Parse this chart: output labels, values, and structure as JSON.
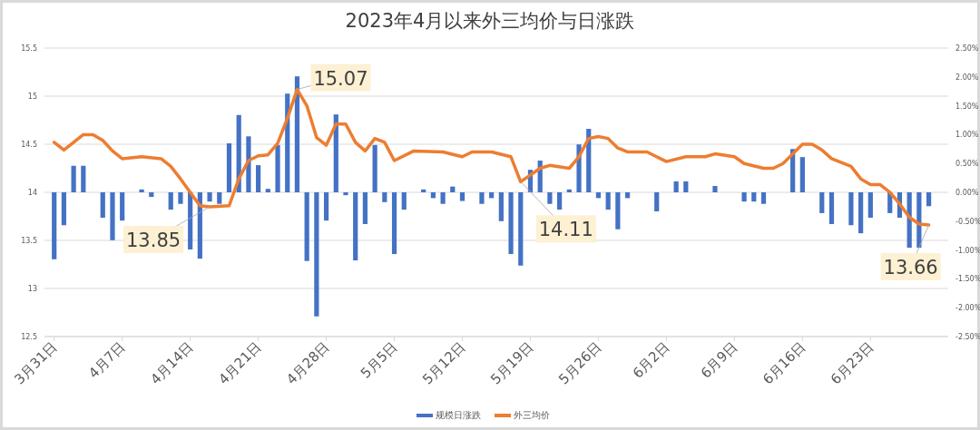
{
  "chart_data": {
    "type": "bar",
    "title": "2023年4月以来外三均价与日涨跌",
    "xlim": [
      "--03-30",
      "--07-01"
    ],
    "xticks": [
      {
        "value": "--03-31",
        "label": "3月31日"
      },
      {
        "value": "--04-07",
        "label": "4月7日"
      },
      {
        "value": "--04-14",
        "label": "4月14日"
      },
      {
        "value": "--04-21",
        "label": "4月21日"
      },
      {
        "value": "--04-28",
        "label": "4月28日"
      },
      {
        "value": "--05-05",
        "label": "5月5日"
      },
      {
        "value": "--05-12",
        "label": "5月12日"
      },
      {
        "value": "--05-19",
        "label": "5月19日"
      },
      {
        "value": "--05-26",
        "label": "5月26日"
      },
      {
        "value": "--06-02",
        "label": "6月2日"
      },
      {
        "value": "--06-09",
        "label": "6月9日"
      },
      {
        "value": "--06-16",
        "label": "6月16日"
      },
      {
        "value": "--06-23",
        "label": "6月23日"
      }
    ],
    "ylim": [
      12.5,
      15.5
    ],
    "yticks": [
      12.5,
      13,
      13.5,
      14,
      14.5,
      15,
      15.5
    ],
    "y2lim": [
      -2.5,
      2.5
    ],
    "y2ticks": [
      {
        "value": -2.5,
        "label": "-2.50%"
      },
      {
        "value": -2,
        "label": "-2.00%"
      },
      {
        "value": -1.5,
        "label": "-1.50%"
      },
      {
        "value": -1,
        "label": "-1.00%"
      },
      {
        "value": -0.5,
        "label": "-0.50%"
      },
      {
        "value": 0,
        "label": "0.00%"
      },
      {
        "value": 0.5,
        "label": "0.50%"
      },
      {
        "value": 1,
        "label": "1.00%"
      },
      {
        "value": 1.5,
        "label": "1.50%"
      },
      {
        "value": 2,
        "label": "2.00%"
      },
      {
        "value": 2.5,
        "label": "2.50%"
      }
    ],
    "grid": "y",
    "legend": "bottom",
    "series": [
      {
        "name": "规模日涨跌",
        "type": "bar",
        "axis": "y2",
        "color": "#4472c4",
        "x": [
          "--03-31",
          "--04-01",
          "--04-02",
          "--04-03",
          "--04-05",
          "--04-06",
          "--04-07",
          "--04-09",
          "--04-10",
          "--04-12",
          "--04-13",
          "--04-14",
          "--04-15",
          "--04-16",
          "--04-17",
          "--04-18",
          "--04-19",
          "--04-20",
          "--04-21",
          "--04-22",
          "--04-23",
          "--04-24",
          "--04-25",
          "--04-26",
          "--04-27",
          "--04-28",
          "--04-29",
          "--04-30",
          "--05-01",
          "--05-02",
          "--05-03",
          "--05-04",
          "--05-05",
          "--05-06",
          "--05-08",
          "--05-09",
          "--05-10",
          "--05-11",
          "--05-12",
          "--05-14",
          "--05-15",
          "--05-16",
          "--05-17",
          "--05-18",
          "--05-19",
          "--05-20",
          "--05-21",
          "--05-22",
          "--05-23",
          "--05-24",
          "--05-25",
          "--05-26",
          "--05-27",
          "--05-28",
          "--05-29",
          "--06-01",
          "--06-03",
          "--06-04",
          "--06-07",
          "--06-10",
          "--06-11",
          "--06-12",
          "--06-15",
          "--06-16",
          "--06-18",
          "--06-19",
          "--06-21",
          "--06-22",
          "--06-23",
          "--06-25",
          "--06-26",
          "--06-27",
          "--06-28",
          "--06-29"
        ],
        "values": [
          -1.16,
          -0.57,
          0.46,
          0.46,
          -0.44,
          -0.83,
          -0.49,
          0.05,
          -0.08,
          -0.3,
          -0.2,
          -0.99,
          -1.15,
          -0.16,
          -0.2,
          0.85,
          1.34,
          0.97,
          0.47,
          0.06,
          0.82,
          1.71,
          2.01,
          -1.19,
          -2.15,
          -0.49,
          1.35,
          -0.05,
          -1.18,
          -0.55,
          0.82,
          -0.17,
          -1.07,
          -0.3,
          0.05,
          -0.1,
          -0.2,
          0.1,
          -0.15,
          -0.2,
          -0.1,
          -0.5,
          -1.07,
          -1.27,
          0.39,
          0.55,
          -0.2,
          -0.3,
          0.05,
          0.83,
          1.1,
          -0.1,
          -0.3,
          -0.64,
          -0.1,
          -0.33,
          0.19,
          0.19,
          0.11,
          -0.16,
          -0.16,
          -0.2,
          0.75,
          0.61,
          -0.36,
          -0.55,
          -0.57,
          -0.71,
          -0.44,
          -0.36,
          -0.44,
          -0.96,
          -0.96,
          -0.24
        ]
      },
      {
        "name": "外三均价",
        "type": "line",
        "color": "#ed7d31",
        "x": [
          "--03-31",
          "--04-01",
          "--04-03",
          "--04-04",
          "--04-05",
          "--04-06",
          "--04-07",
          "--04-09",
          "--04-11",
          "--04-12",
          "--04-13",
          "--04-15",
          "--04-16",
          "--04-18",
          "--04-19",
          "--04-20",
          "--04-21",
          "--04-22",
          "--04-23",
          "--04-24",
          "--04-25",
          "--04-26",
          "--04-27",
          "--04-28",
          "--04-29",
          "--04-30",
          "--05-01",
          "--05-02",
          "--05-03",
          "--05-04",
          "--05-05",
          "--05-07",
          "--05-10",
          "--05-12",
          "--05-13",
          "--05-15",
          "--05-17",
          "--05-18",
          "--05-20",
          "--05-21",
          "--05-23",
          "--05-24",
          "--05-25",
          "--05-26",
          "--05-27",
          "--05-28",
          "--05-29",
          "--05-31",
          "--06-02",
          "--06-04",
          "--06-06",
          "--06-07",
          "--06-09",
          "--06-10",
          "--06-12",
          "--06-13",
          "--06-14",
          "--06-16",
          "--06-17",
          "--06-18",
          "--06-19",
          "--06-21",
          "--06-22",
          "--06-23",
          "--06-24",
          "--06-25",
          "--06-26",
          "--06-27",
          "--06-28",
          "--06-29"
        ],
        "values": [
          14.52,
          14.44,
          14.6,
          14.6,
          14.54,
          14.43,
          14.35,
          14.37,
          14.35,
          14.27,
          14.14,
          13.86,
          13.85,
          13.86,
          14.14,
          14.33,
          14.38,
          14.39,
          14.51,
          14.77,
          15.07,
          14.9,
          14.57,
          14.49,
          14.71,
          14.71,
          14.52,
          14.43,
          14.56,
          14.52,
          14.33,
          14.43,
          14.42,
          14.37,
          14.42,
          14.42,
          14.37,
          14.11,
          14.25,
          14.28,
          14.25,
          14.37,
          14.56,
          14.58,
          14.56,
          14.46,
          14.42,
          14.42,
          14.32,
          14.37,
          14.37,
          14.4,
          14.37,
          14.3,
          14.25,
          14.25,
          14.3,
          14.5,
          14.5,
          14.44,
          14.35,
          14.27,
          14.14,
          14.08,
          14.08,
          14.0,
          13.88,
          13.74,
          13.67,
          13.66
        ]
      }
    ],
    "annotations": [
      {
        "text": "15.07",
        "x": "--04-25",
        "y": 15.07
      },
      {
        "text": "13.85",
        "x": "--04-16",
        "y": 13.85
      },
      {
        "text": "14.11",
        "x": "--05-18",
        "y": 14.11
      },
      {
        "text": "13.66",
        "x": "--06-29",
        "y": 13.66
      }
    ]
  }
}
